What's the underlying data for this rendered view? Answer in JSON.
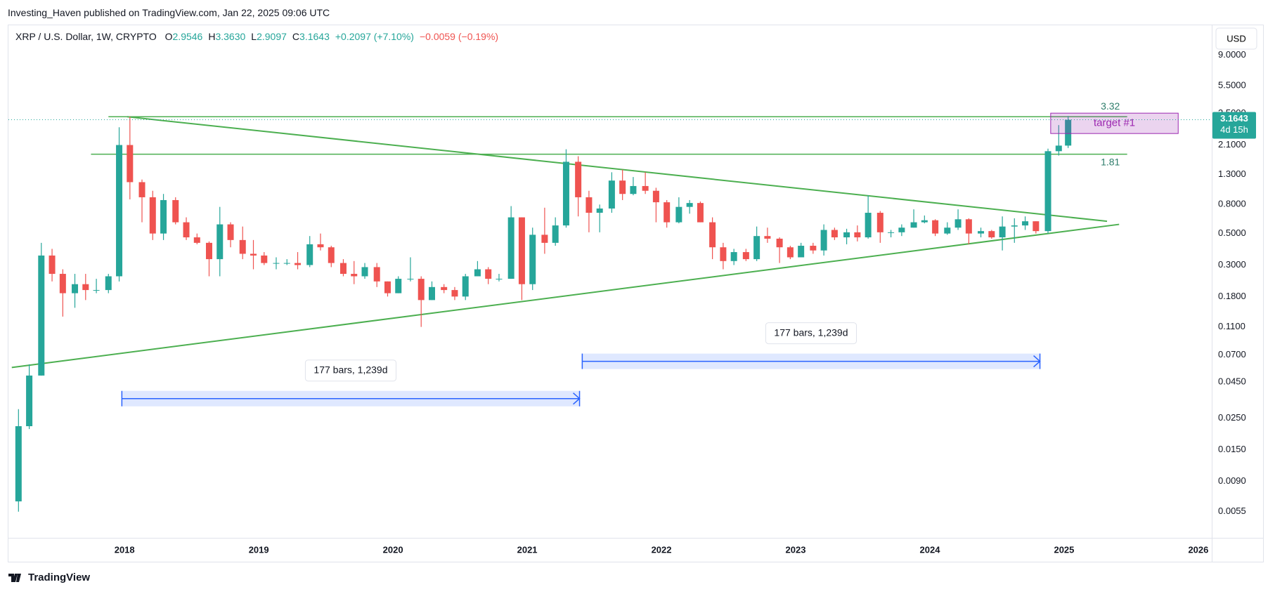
{
  "page": {
    "publisher": "Investing_Haven published on TradingView.com, Jan 22, 2025 09:06 UTC",
    "footer": "TradingView"
  },
  "chart_data": {
    "type": "candlestick",
    "legend": {
      "symbol": "XRP / U.S. Dollar, 1W, CRYPTO",
      "items": [
        {
          "label": "O",
          "value": "2.9546"
        },
        {
          "label": "H",
          "value": "3.3630"
        },
        {
          "label": "L",
          "value": "2.9097"
        },
        {
          "label": "C",
          "value": "3.1643"
        }
      ],
      "change": "+0.2097 (+7.10%)",
      "change_after": "−0.0059 (−0.19%)"
    },
    "currency": "USD",
    "up_color": "#26a69a",
    "down_color": "#ef5350",
    "log_scale": true,
    "grid": false,
    "xlim": [
      2017.135,
      2026.1
    ],
    "xticks": [
      2018,
      2019,
      2020,
      2021,
      2022,
      2023,
      2024,
      2025,
      2026
    ],
    "ylim": [
      0.0036,
      14.8
    ],
    "yticks": [
      {
        "value": 9,
        "label": "9.0000"
      },
      {
        "value": 5.5,
        "label": "5.5000"
      },
      {
        "value": 3.5,
        "label": "3.5000"
      },
      {
        "value": 2.1,
        "label": "2.1000"
      },
      {
        "value": 1.3,
        "label": "1.3000"
      },
      {
        "value": 0.8,
        "label": "0.8000"
      },
      {
        "value": 0.5,
        "label": "0.5000"
      },
      {
        "value": 0.3,
        "label": "0.3000"
      },
      {
        "value": 0.18,
        "label": "0.1800"
      },
      {
        "value": 0.11,
        "label": "0.1100"
      },
      {
        "value": 0.07,
        "label": "0.0700"
      },
      {
        "value": 0.045,
        "label": "0.0450"
      },
      {
        "value": 0.025,
        "label": "0.0250"
      },
      {
        "value": 0.015,
        "label": "0.0150"
      },
      {
        "value": 0.009,
        "label": "0.0090"
      },
      {
        "value": 0.0055,
        "label": "0.0055"
      }
    ],
    "x": [
      2017.21,
      2017.29,
      2017.38,
      2017.46,
      2017.54,
      2017.63,
      2017.71,
      2017.79,
      2017.88,
      2017.96,
      2018.04,
      2018.13,
      2018.21,
      2018.29,
      2018.38,
      2018.46,
      2018.54,
      2018.63,
      2018.71,
      2018.79,
      2018.88,
      2018.96,
      2019.04,
      2019.13,
      2019.21,
      2019.29,
      2019.38,
      2019.46,
      2019.54,
      2019.63,
      2019.71,
      2019.79,
      2019.88,
      2019.96,
      2020.04,
      2020.13,
      2020.21,
      2020.29,
      2020.38,
      2020.46,
      2020.54,
      2020.63,
      2020.71,
      2020.79,
      2020.88,
      2020.96,
      2021.04,
      2021.13,
      2021.21,
      2021.29,
      2021.38,
      2021.46,
      2021.54,
      2021.63,
      2021.71,
      2021.79,
      2021.88,
      2021.96,
      2022.04,
      2022.13,
      2022.21,
      2022.29,
      2022.38,
      2022.46,
      2022.54,
      2022.63,
      2022.71,
      2022.79,
      2022.88,
      2022.96,
      2023.04,
      2023.13,
      2023.21,
      2023.29,
      2023.38,
      2023.46,
      2023.54,
      2023.63,
      2023.71,
      2023.79,
      2023.88,
      2023.96,
      2024.04,
      2024.13,
      2024.21,
      2024.29,
      2024.38,
      2024.46,
      2024.54,
      2024.63,
      2024.71,
      2024.79,
      2024.88,
      2024.96,
      2025.03
    ],
    "open": [
      0.0065,
      0.022,
      0.05,
      0.35,
      0.26,
      0.19,
      0.22,
      0.2,
      0.2,
      0.25,
      2.1,
      1.15,
      0.9,
      0.5,
      0.86,
      0.6,
      0.47,
      0.43,
      0.33,
      0.58,
      0.45,
      0.36,
      0.35,
      0.31,
      0.31,
      0.31,
      0.3,
      0.42,
      0.4,
      0.31,
      0.26,
      0.25,
      0.29,
      0.23,
      0.19,
      0.24,
      0.24,
      0.17,
      0.21,
      0.2,
      0.18,
      0.25,
      0.28,
      0.24,
      0.24,
      0.65,
      0.22,
      0.49,
      0.43,
      0.57,
      1.6,
      0.9,
      0.7,
      0.75,
      1.18,
      0.95,
      1.08,
      1.0,
      0.83,
      0.6,
      0.77,
      0.82,
      0.6,
      0.4,
      0.32,
      0.37,
      0.33,
      0.48,
      0.46,
      0.4,
      0.34,
      0.41,
      0.38,
      0.53,
      0.47,
      0.51,
      0.47,
      0.7,
      0.51,
      0.51,
      0.55,
      0.6,
      0.62,
      0.5,
      0.55,
      0.63,
      0.5,
      0.52,
      0.47,
      0.56,
      0.57,
      0.61,
      0.52,
      1.9,
      2.08
    ],
    "high": [
      0.029,
      0.06,
      0.43,
      0.39,
      0.28,
      0.26,
      0.26,
      0.24,
      0.26,
      2.8,
      3.32,
      1.2,
      1.0,
      0.95,
      0.9,
      0.65,
      0.5,
      0.44,
      0.77,
      0.6,
      0.56,
      0.45,
      0.37,
      0.34,
      0.33,
      0.37,
      0.48,
      0.5,
      0.41,
      0.33,
      0.32,
      0.31,
      0.31,
      0.23,
      0.25,
      0.34,
      0.25,
      0.23,
      0.22,
      0.21,
      0.26,
      0.32,
      0.29,
      0.26,
      0.78,
      0.65,
      0.55,
      0.76,
      0.65,
      1.96,
      1.75,
      1.0,
      0.8,
      1.35,
      1.41,
      1.25,
      1.35,
      1.05,
      0.86,
      0.9,
      0.86,
      0.84,
      0.65,
      0.43,
      0.39,
      0.39,
      0.56,
      0.55,
      0.47,
      0.41,
      0.43,
      0.43,
      0.58,
      0.55,
      0.54,
      0.57,
      0.93,
      0.72,
      0.53,
      0.58,
      0.74,
      0.67,
      0.63,
      0.6,
      0.74,
      0.64,
      0.55,
      0.53,
      0.66,
      0.64,
      0.66,
      0.61,
      1.98,
      2.9,
      3.36
    ],
    "low": [
      0.0055,
      0.021,
      0.05,
      0.23,
      0.13,
      0.15,
      0.17,
      0.19,
      0.19,
      0.23,
      0.87,
      0.6,
      0.45,
      0.45,
      0.58,
      0.45,
      0.42,
      0.25,
      0.25,
      0.4,
      0.33,
      0.28,
      0.3,
      0.28,
      0.3,
      0.28,
      0.29,
      0.38,
      0.29,
      0.25,
      0.22,
      0.24,
      0.21,
      0.18,
      0.19,
      0.23,
      0.11,
      0.17,
      0.19,
      0.17,
      0.17,
      0.25,
      0.22,
      0.23,
      0.24,
      0.17,
      0.2,
      0.36,
      0.41,
      0.55,
      0.66,
      0.51,
      0.51,
      0.7,
      0.86,
      0.93,
      0.95,
      0.6,
      0.55,
      0.59,
      0.69,
      0.6,
      0.33,
      0.28,
      0.3,
      0.32,
      0.32,
      0.43,
      0.31,
      0.33,
      0.34,
      0.36,
      0.35,
      0.45,
      0.42,
      0.44,
      0.46,
      0.43,
      0.47,
      0.48,
      0.55,
      0.59,
      0.48,
      0.49,
      0.53,
      0.42,
      0.47,
      0.46,
      0.38,
      0.43,
      0.53,
      0.5,
      0.5,
      1.77,
      2.0
    ],
    "close": [
      0.022,
      0.05,
      0.35,
      0.26,
      0.19,
      0.22,
      0.2,
      0.2,
      0.25,
      2.1,
      1.15,
      0.9,
      0.5,
      0.86,
      0.6,
      0.47,
      0.43,
      0.33,
      0.58,
      0.45,
      0.36,
      0.35,
      0.31,
      0.31,
      0.31,
      0.3,
      0.42,
      0.4,
      0.31,
      0.26,
      0.25,
      0.29,
      0.23,
      0.19,
      0.24,
      0.24,
      0.17,
      0.21,
      0.2,
      0.18,
      0.25,
      0.28,
      0.24,
      0.24,
      0.65,
      0.22,
      0.49,
      0.43,
      0.57,
      1.6,
      0.9,
      0.7,
      0.75,
      1.18,
      0.95,
      1.08,
      1.0,
      0.83,
      0.6,
      0.77,
      0.82,
      0.6,
      0.4,
      0.32,
      0.37,
      0.33,
      0.48,
      0.46,
      0.4,
      0.34,
      0.41,
      0.38,
      0.53,
      0.47,
      0.51,
      0.47,
      0.7,
      0.51,
      0.51,
      0.55,
      0.6,
      0.62,
      0.5,
      0.55,
      0.63,
      0.5,
      0.52,
      0.47,
      0.56,
      0.57,
      0.61,
      0.52,
      1.9,
      2.08,
      3.16
    ],
    "last_price": {
      "value": 3.1643,
      "countdown": "4d 15h"
    },
    "drawings": {
      "color": "#4caf50",
      "hlines": [
        {
          "value": 3.32,
          "x": [
            2017.88,
            2025.47
          ]
        },
        {
          "value": 1.81,
          "x": [
            2017.75,
            2025.47
          ]
        }
      ],
      "trendlines": [
        {
          "x": [
            2018.02,
            2025.32
          ],
          "y": [
            3.32,
            0.61
          ]
        },
        {
          "x": [
            2017.16,
            2025.41
          ],
          "y": [
            0.057,
            0.58
          ]
        }
      ],
      "box": {
        "text": "target #1",
        "x": [
          2024.9,
          2025.85
        ],
        "y": [
          2.53,
          3.52
        ],
        "color": "#9c27b0"
      },
      "range_color": "#2962ff",
      "ranges": [
        {
          "text": "177 bars, 1,239d",
          "x": [
            2017.98,
            2021.39
          ],
          "y": 0.0344
        },
        {
          "text": "177 bars, 1,239d",
          "x": [
            2021.41,
            2024.82
          ],
          "y": 0.063
        }
      ]
    }
  }
}
